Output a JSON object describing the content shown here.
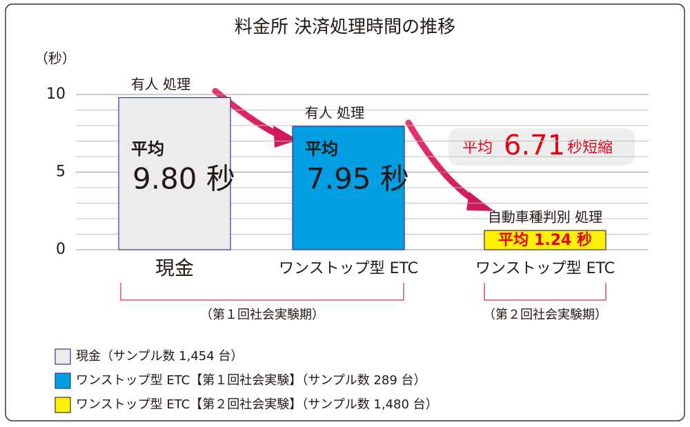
{
  "chart_data": {
    "type": "bar",
    "title": "料金所 決済処理時間の推移",
    "y_axis_label": "（秒）",
    "categories": [
      "現金",
      "ワンストップ型 ETC",
      "ワンストップ型 ETC"
    ],
    "values": [
      9.8,
      7.95,
      1.24
    ],
    "value_labels": [
      "9.80 秒",
      "7.95 秒",
      "1.24 秒"
    ],
    "average_label": "平均",
    "bar_annotations": [
      "有人 処理",
      "有人 処理",
      "自動車種判別 処理"
    ],
    "colors": [
      "#ececec",
      "#009fe3",
      "#fff200"
    ],
    "ylim": [
      0,
      10
    ],
    "yticks": [
      0,
      5,
      10
    ],
    "minor_yticks": [
      1,
      2,
      3,
      4,
      6,
      7,
      8,
      9
    ],
    "grid": true,
    "reduction": {
      "prefix": "平均",
      "value": 6.71,
      "suffix": "秒短縮"
    },
    "group_labels": [
      "（第１回社会実験期）",
      "（第２回社会実験期）"
    ],
    "legend_labels": [
      "現金（サンプル数 1,454 台）",
      "ワンストップ型 ETC【第１回社会実験】（サンプル数 289 台）",
      "ワンストップ型 ETC【第２回社会実験】（サンプル数 1,480 台）"
    ]
  }
}
